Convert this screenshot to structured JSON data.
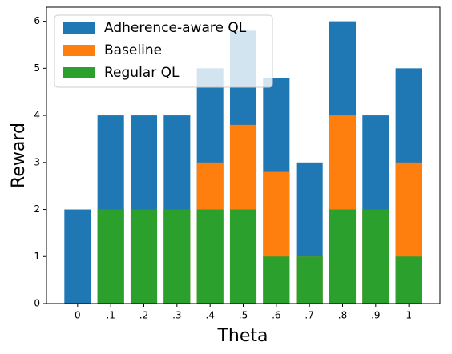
{
  "chart_data": {
    "type": "bar",
    "overlap": true,
    "xlabel": "Theta",
    "ylabel": "Reward",
    "categories": [
      "0",
      ".1",
      ".2",
      ".3",
      ".4",
      ".5",
      ".6",
      ".7",
      ".8",
      ".9",
      "1"
    ],
    "series": [
      {
        "name": "Adherence-aware QL",
        "color": "#1f77b4",
        "values": [
          2,
          4,
          4,
          4,
          5,
          5.8,
          4.8,
          3,
          6,
          4,
          5
        ]
      },
      {
        "name": "Baseline",
        "color": "#ff7f0e",
        "values": [
          0,
          2,
          2,
          2,
          3,
          3.8,
          2.8,
          1,
          4,
          2,
          3
        ]
      },
      {
        "name": "Regular QL",
        "color": "#2ca02c",
        "values": [
          0,
          2,
          2,
          2,
          2,
          2,
          1,
          1,
          2,
          2,
          1
        ]
      }
    ],
    "ylim": [
      0,
      6.3
    ],
    "yticks": [
      0,
      1,
      2,
      3,
      4,
      5,
      6
    ],
    "legend": "upper left"
  }
}
